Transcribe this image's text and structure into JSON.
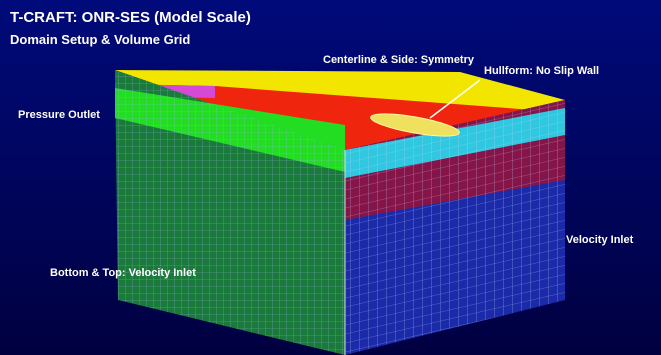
{
  "header": {
    "title": "T-CRAFT:  ONR-SES (Model Scale)",
    "subtitle": "Domain Setup & Volume Grid"
  },
  "labels": {
    "centerline": "Centerline & Side:  Symmetry",
    "hullform": "Hullform:  No Slip Wall",
    "outlet": "Pressure Outlet",
    "inlet": "Velocity Inlet",
    "bottom_top": "Bottom & Top:  Velocity Inlet"
  }
}
